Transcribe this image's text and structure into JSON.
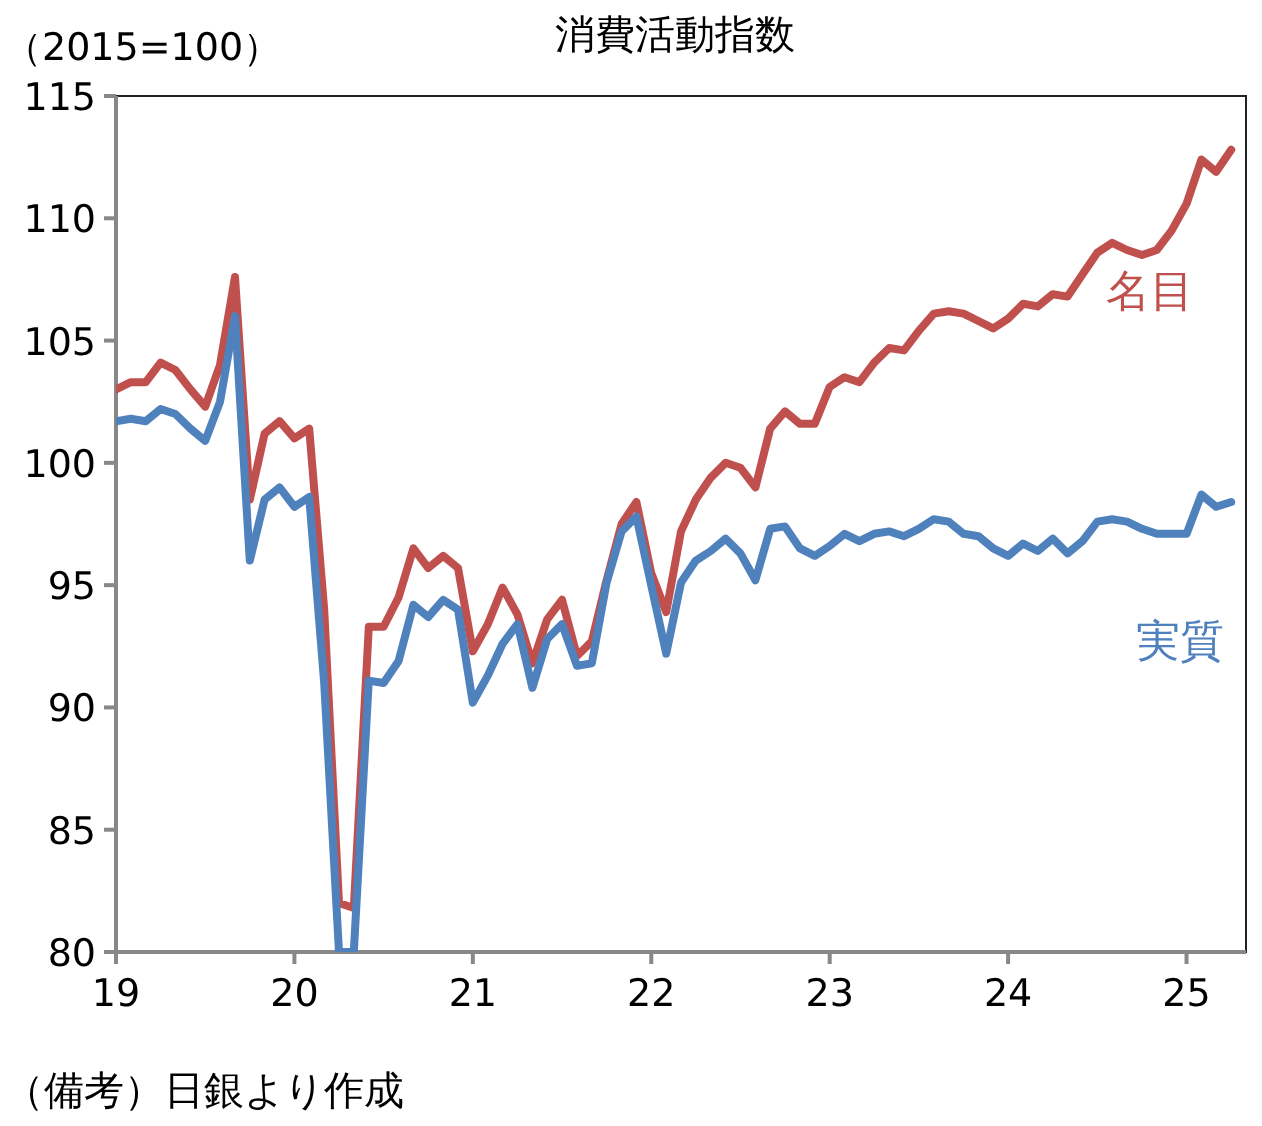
{
  "chart_data": {
    "type": "line",
    "title": "消費活動指数",
    "subtitle": "（2015=100）",
    "annotations": [
      "（備考）日銀より作成"
    ],
    "x": [
      "2019-01",
      "2019-02",
      "2019-03",
      "2019-04",
      "2019-05",
      "2019-06",
      "2019-07",
      "2019-08",
      "2019-09",
      "2019-10",
      "2019-11",
      "2019-12",
      "2020-01",
      "2020-02",
      "2020-03",
      "2020-04",
      "2020-05",
      "2020-06",
      "2020-07",
      "2020-08",
      "2020-09",
      "2020-10",
      "2020-11",
      "2020-12",
      "2021-01",
      "2021-02",
      "2021-03",
      "2021-04",
      "2021-05",
      "2021-06",
      "2021-07",
      "2021-08",
      "2021-09",
      "2021-10",
      "2021-11",
      "2021-12",
      "2022-01",
      "2022-02",
      "2022-03",
      "2022-04",
      "2022-05",
      "2022-06",
      "2022-07",
      "2022-08",
      "2022-09",
      "2022-10",
      "2022-11",
      "2022-12",
      "2023-01",
      "2023-02",
      "2023-03",
      "2023-04",
      "2023-05",
      "2023-06",
      "2023-07",
      "2023-08",
      "2023-09",
      "2023-10",
      "2023-11",
      "2023-12",
      "2024-01",
      "2024-02",
      "2024-03",
      "2024-04",
      "2024-05",
      "2024-06",
      "2024-07",
      "2024-08",
      "2024-09",
      "2024-10",
      "2024-11",
      "2024-12",
      "2025-01",
      "2025-02",
      "2025-03",
      "2025-04"
    ],
    "series": [
      {
        "name": "名目",
        "color": "#c0504d",
        "values": [
          103.0,
          103.3,
          103.3,
          104.1,
          103.8,
          103.0,
          102.3,
          104.0,
          107.6,
          98.5,
          101.2,
          101.7,
          101.0,
          101.4,
          94.0,
          82.0,
          81.8,
          93.3,
          93.3,
          94.5,
          96.5,
          95.7,
          96.2,
          95.7,
          92.3,
          93.4,
          94.9,
          93.8,
          91.8,
          93.6,
          94.4,
          92.1,
          92.7,
          95.2,
          97.5,
          98.4,
          95.5,
          93.9,
          97.2,
          98.5,
          99.4,
          100.0,
          99.8,
          99.0,
          101.4,
          102.1,
          101.6,
          101.6,
          103.1,
          103.5,
          103.3,
          104.1,
          104.7,
          104.6,
          105.4,
          106.1,
          106.2,
          106.1,
          105.8,
          105.5,
          105.9,
          106.5,
          106.4,
          106.9,
          106.8,
          107.7,
          108.6,
          109.0,
          108.7,
          108.5,
          108.7,
          109.5,
          110.6,
          112.4,
          111.9,
          112.8
        ]
      },
      {
        "name": "実質",
        "color": "#4f81bd",
        "values": [
          101.7,
          101.8,
          101.7,
          102.2,
          102.0,
          101.4,
          100.9,
          102.5,
          106.0,
          96.0,
          98.5,
          99.0,
          98.2,
          98.6,
          91.0,
          80.0,
          80.0,
          91.1,
          91.0,
          91.9,
          94.2,
          93.7,
          94.4,
          94.0,
          90.2,
          91.3,
          92.6,
          93.4,
          90.8,
          92.8,
          93.4,
          91.7,
          91.8,
          95.1,
          97.2,
          97.8,
          95.0,
          92.2,
          95.1,
          96.0,
          96.4,
          96.9,
          96.3,
          95.2,
          97.3,
          97.4,
          96.5,
          96.2,
          96.6,
          97.1,
          96.8,
          97.1,
          97.2,
          97.0,
          97.3,
          97.7,
          97.6,
          97.1,
          97.0,
          96.5,
          96.2,
          96.7,
          96.4,
          96.9,
          96.3,
          96.8,
          97.6,
          97.7,
          97.6,
          97.3,
          97.1,
          97.1,
          97.1,
          98.7,
          98.2,
          98.4
        ]
      }
    ],
    "xlim": [
      "2019-01",
      "2025-05"
    ],
    "xticks": [
      {
        "value": "2019-01",
        "label": "19"
      },
      {
        "value": "2020-01",
        "label": "20"
      },
      {
        "value": "2021-01",
        "label": "21"
      },
      {
        "value": "2022-01",
        "label": "22"
      },
      {
        "value": "2023-01",
        "label": "23"
      },
      {
        "value": "2024-01",
        "label": "24"
      },
      {
        "value": "2025-01",
        "label": "25"
      }
    ],
    "ylim": [
      80,
      115
    ],
    "yticks": [
      80,
      85,
      90,
      95,
      100,
      105,
      110,
      115
    ],
    "grid": false,
    "legend": false,
    "line_style": "solid",
    "marker": "none"
  }
}
